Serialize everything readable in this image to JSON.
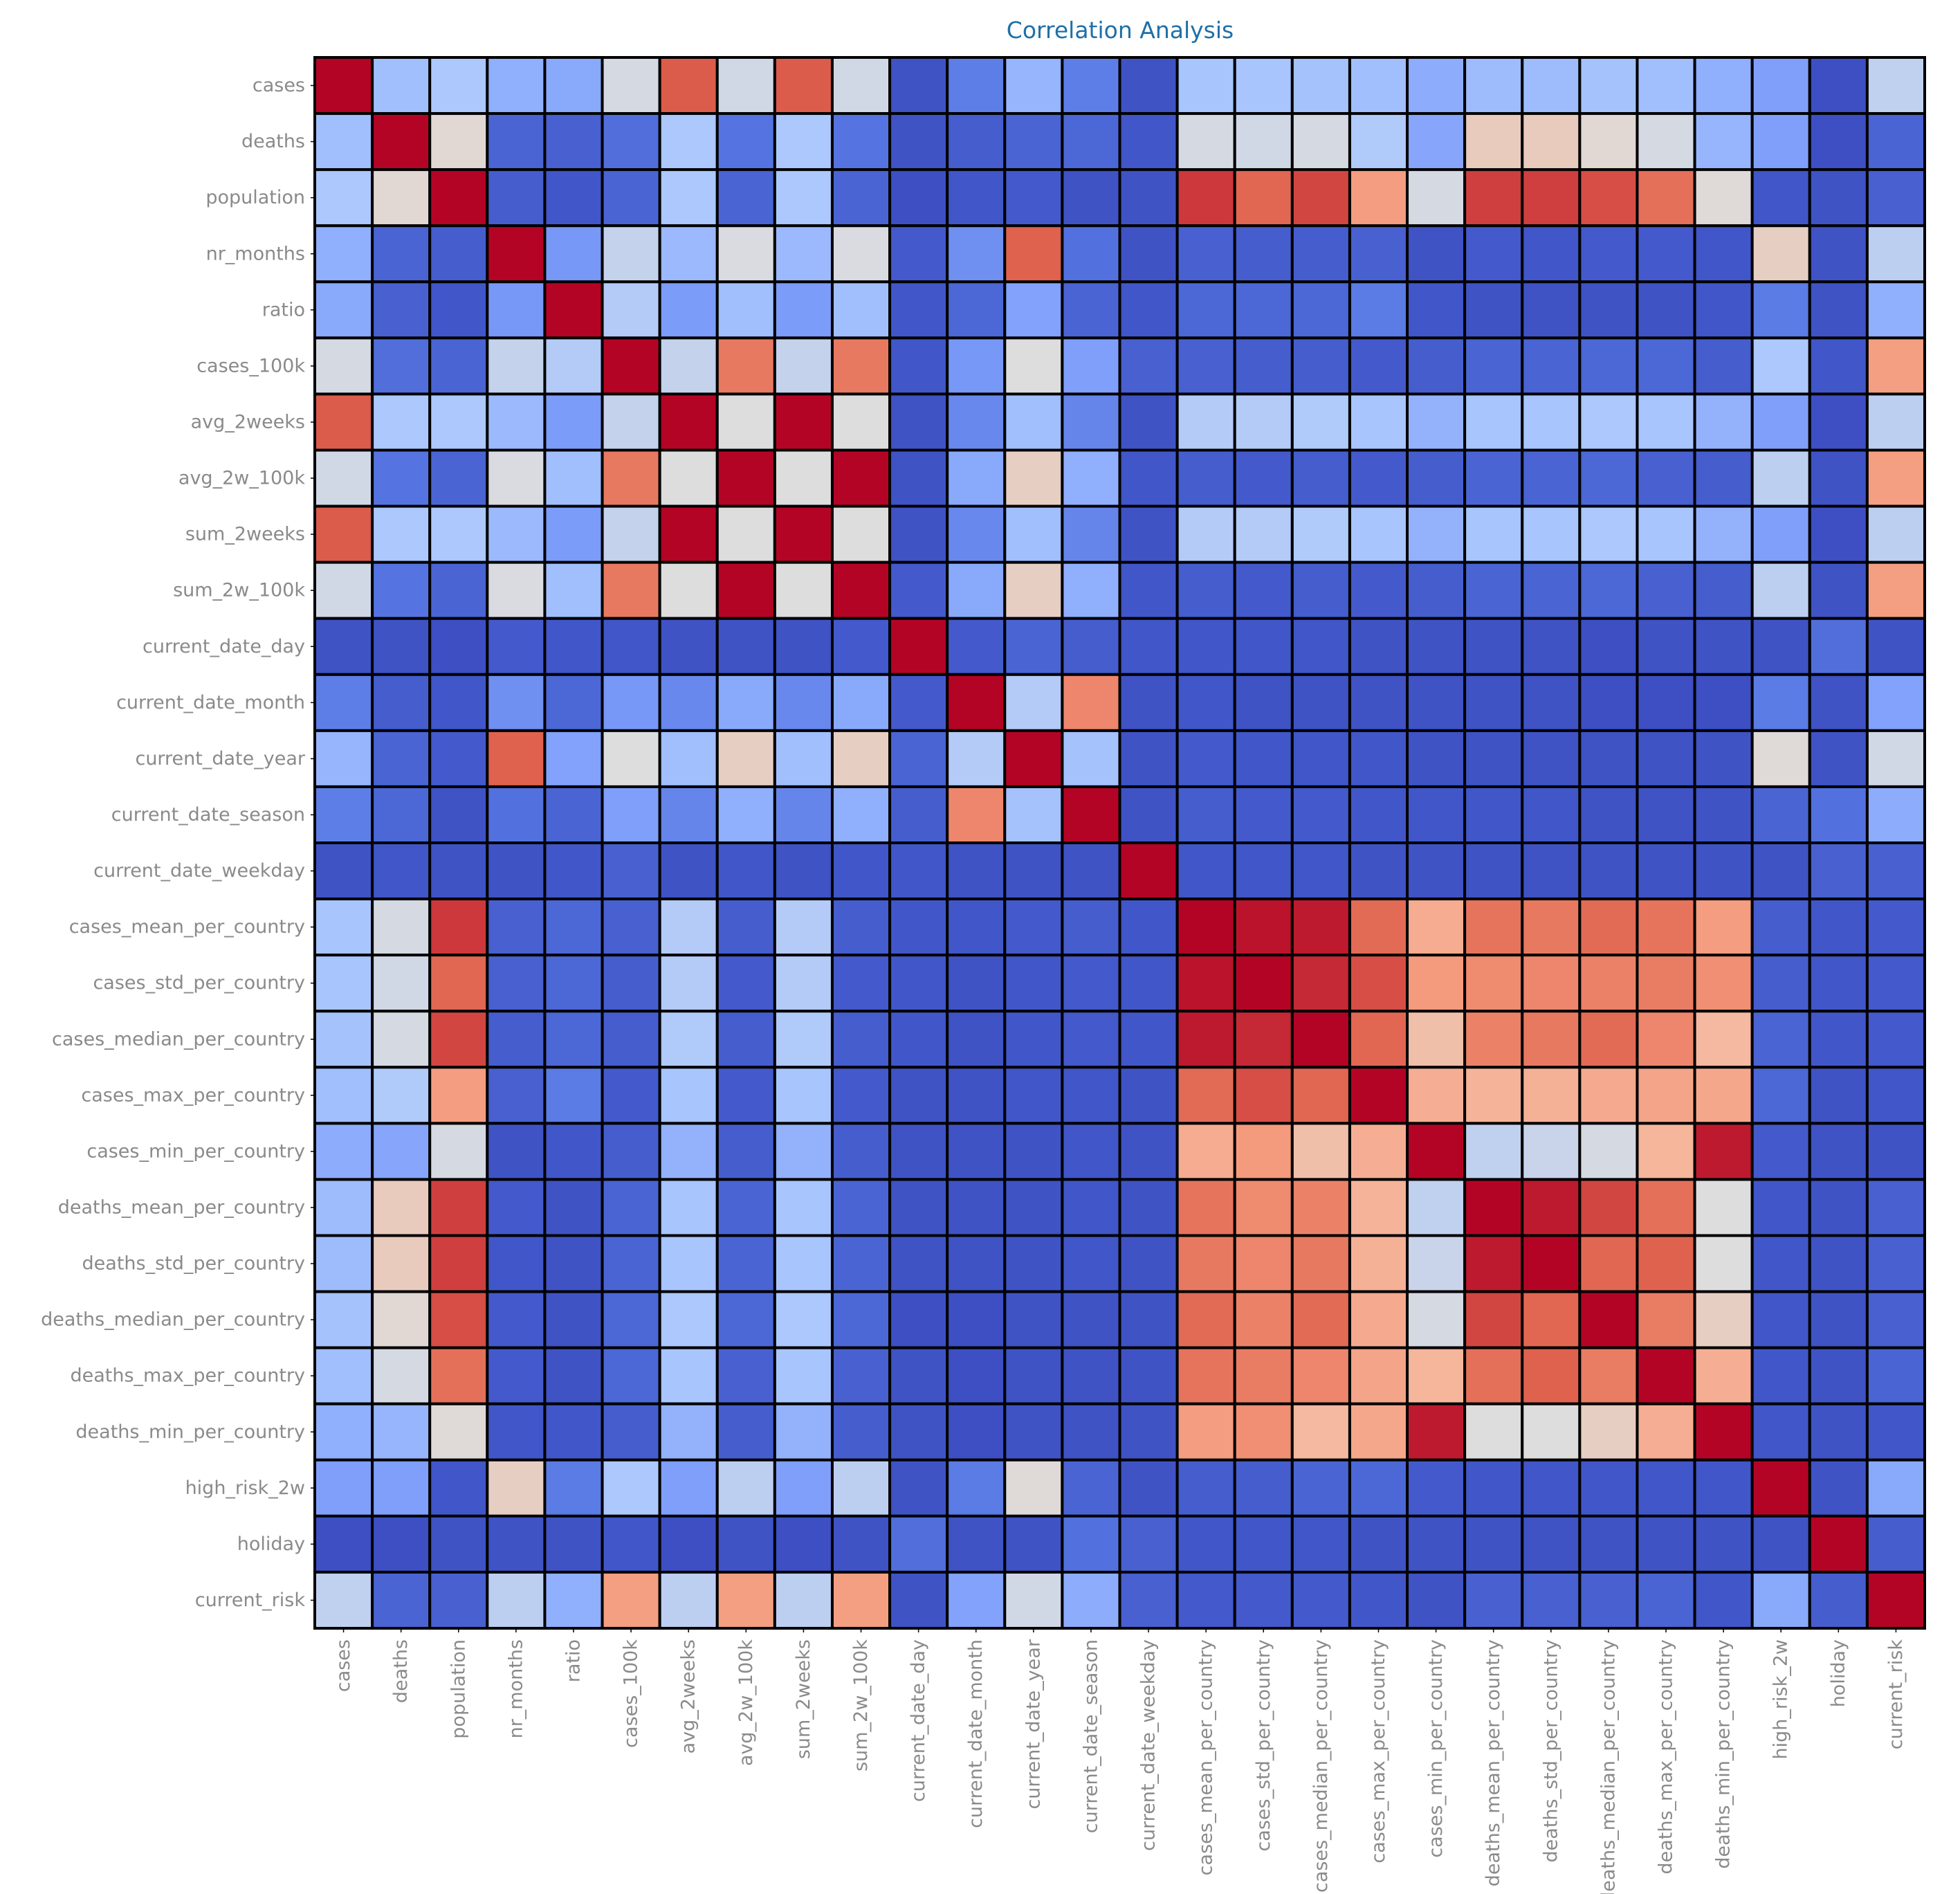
{
  "chart_data": {
    "type": "heatmap",
    "title": "Correlation Analysis",
    "colormap": "coolwarm",
    "color_range": [
      0,
      1
    ],
    "grid": false,
    "legend": "none",
    "labels": [
      "cases",
      "deaths",
      "population",
      "nr_months",
      "ratio",
      "cases_100k",
      "avg_2weeks",
      "avg_2w_100k",
      "sum_2weeks",
      "sum_2w_100k",
      "current_date_day",
      "current_date_month",
      "current_date_year",
      "current_date_season",
      "current_date_weekday",
      "cases_mean_per_country",
      "cases_std_per_country",
      "cases_median_per_country",
      "cases_max_per_country",
      "cases_min_per_country",
      "deaths_mean_per_country",
      "deaths_std_per_country",
      "deaths_median_per_country",
      "deaths_max_per_country",
      "deaths_min_per_country",
      "high_risk_2w",
      "holiday",
      "current_risk"
    ],
    "matrix": [
      [
        1.0,
        0.35,
        0.38,
        0.3,
        0.28,
        0.48,
        0.88,
        0.47,
        0.88,
        0.47,
        0.02,
        0.15,
        0.32,
        0.15,
        0.02,
        0.37,
        0.37,
        0.36,
        0.35,
        0.29,
        0.34,
        0.34,
        0.36,
        0.35,
        0.3,
        0.25,
        0.01,
        0.43
      ],
      [
        0.35,
        1.0,
        0.52,
        0.07,
        0.06,
        0.1,
        0.38,
        0.12,
        0.38,
        0.12,
        0.02,
        0.05,
        0.07,
        0.08,
        0.03,
        0.48,
        0.47,
        0.48,
        0.39,
        0.27,
        0.56,
        0.56,
        0.52,
        0.48,
        0.32,
        0.25,
        0.01,
        0.07
      ],
      [
        0.38,
        0.52,
        1.0,
        0.05,
        0.03,
        0.07,
        0.38,
        0.07,
        0.38,
        0.07,
        0.01,
        0.03,
        0.04,
        0.02,
        0.02,
        0.93,
        0.86,
        0.91,
        0.73,
        0.48,
        0.92,
        0.92,
        0.9,
        0.84,
        0.51,
        0.03,
        0.02,
        0.06
      ],
      [
        0.3,
        0.07,
        0.05,
        1.0,
        0.23,
        0.44,
        0.33,
        0.49,
        0.33,
        0.49,
        0.04,
        0.2,
        0.87,
        0.11,
        0.02,
        0.06,
        0.05,
        0.05,
        0.06,
        0.02,
        0.04,
        0.03,
        0.04,
        0.04,
        0.03,
        0.55,
        0.02,
        0.42
      ],
      [
        0.28,
        0.06,
        0.03,
        0.23,
        1.0,
        0.4,
        0.24,
        0.35,
        0.24,
        0.35,
        0.03,
        0.08,
        0.26,
        0.07,
        0.03,
        0.08,
        0.08,
        0.08,
        0.14,
        0.03,
        0.02,
        0.02,
        0.02,
        0.02,
        0.03,
        0.14,
        0.02,
        0.3
      ],
      [
        0.48,
        0.1,
        0.07,
        0.44,
        0.4,
        1.0,
        0.44,
        0.82,
        0.44,
        0.82,
        0.03,
        0.23,
        0.5,
        0.25,
        0.06,
        0.06,
        0.05,
        0.05,
        0.04,
        0.05,
        0.07,
        0.07,
        0.08,
        0.08,
        0.05,
        0.38,
        0.03,
        0.72
      ],
      [
        0.88,
        0.38,
        0.38,
        0.33,
        0.24,
        0.44,
        1.0,
        0.5,
        1.0,
        0.5,
        0.02,
        0.18,
        0.35,
        0.17,
        0.02,
        0.4,
        0.4,
        0.39,
        0.37,
        0.31,
        0.37,
        0.37,
        0.38,
        0.37,
        0.31,
        0.25,
        0.01,
        0.42
      ],
      [
        0.47,
        0.12,
        0.07,
        0.49,
        0.35,
        0.82,
        0.5,
        1.0,
        0.5,
        1.0,
        0.02,
        0.28,
        0.55,
        0.3,
        0.03,
        0.05,
        0.04,
        0.05,
        0.04,
        0.05,
        0.07,
        0.07,
        0.08,
        0.06,
        0.05,
        0.42,
        0.02,
        0.72
      ],
      [
        0.88,
        0.38,
        0.38,
        0.33,
        0.24,
        0.44,
        1.0,
        0.5,
        1.0,
        0.5,
        0.02,
        0.18,
        0.35,
        0.17,
        0.02,
        0.4,
        0.4,
        0.39,
        0.37,
        0.31,
        0.37,
        0.37,
        0.38,
        0.37,
        0.31,
        0.25,
        0.01,
        0.42
      ],
      [
        0.47,
        0.12,
        0.07,
        0.49,
        0.35,
        0.82,
        0.5,
        1.0,
        0.5,
        1.0,
        0.04,
        0.28,
        0.55,
        0.3,
        0.03,
        0.05,
        0.04,
        0.05,
        0.04,
        0.05,
        0.07,
        0.07,
        0.08,
        0.06,
        0.05,
        0.42,
        0.02,
        0.72
      ],
      [
        0.02,
        0.02,
        0.01,
        0.04,
        0.03,
        0.03,
        0.02,
        0.02,
        0.02,
        0.04,
        1.0,
        0.04,
        0.07,
        0.05,
        0.03,
        0.03,
        0.03,
        0.03,
        0.02,
        0.02,
        0.02,
        0.02,
        0.01,
        0.02,
        0.02,
        0.02,
        0.1,
        0.02
      ],
      [
        0.15,
        0.05,
        0.03,
        0.2,
        0.08,
        0.23,
        0.18,
        0.28,
        0.18,
        0.28,
        0.04,
        1.0,
        0.4,
        0.79,
        0.02,
        0.03,
        0.02,
        0.02,
        0.02,
        0.02,
        0.02,
        0.02,
        0.01,
        0.01,
        0.01,
        0.14,
        0.02,
        0.26
      ],
      [
        0.32,
        0.07,
        0.04,
        0.87,
        0.26,
        0.5,
        0.35,
        0.55,
        0.35,
        0.55,
        0.07,
        0.4,
        1.0,
        0.36,
        0.02,
        0.04,
        0.03,
        0.03,
        0.03,
        0.02,
        0.02,
        0.02,
        0.02,
        0.02,
        0.02,
        0.51,
        0.02,
        0.47
      ],
      [
        0.15,
        0.08,
        0.02,
        0.11,
        0.07,
        0.25,
        0.17,
        0.3,
        0.17,
        0.3,
        0.05,
        0.79,
        0.36,
        1.0,
        0.02,
        0.05,
        0.04,
        0.04,
        0.03,
        0.03,
        0.03,
        0.03,
        0.02,
        0.02,
        0.02,
        0.07,
        0.11,
        0.29
      ],
      [
        0.02,
        0.03,
        0.02,
        0.02,
        0.03,
        0.06,
        0.02,
        0.03,
        0.02,
        0.03,
        0.03,
        0.02,
        0.02,
        0.02,
        1.0,
        0.03,
        0.03,
        0.03,
        0.02,
        0.02,
        0.02,
        0.02,
        0.02,
        0.02,
        0.02,
        0.02,
        0.06,
        0.06
      ],
      [
        0.37,
        0.48,
        0.93,
        0.06,
        0.08,
        0.06,
        0.4,
        0.05,
        0.4,
        0.05,
        0.03,
        0.03,
        0.04,
        0.05,
        0.03,
        1.0,
        0.98,
        0.97,
        0.85,
        0.67,
        0.83,
        0.82,
        0.85,
        0.83,
        0.73,
        0.05,
        0.03,
        0.04
      ],
      [
        0.37,
        0.47,
        0.86,
        0.06,
        0.08,
        0.05,
        0.4,
        0.04,
        0.4,
        0.04,
        0.03,
        0.02,
        0.03,
        0.04,
        0.03,
        0.98,
        1.0,
        0.95,
        0.9,
        0.74,
        0.78,
        0.79,
        0.8,
        0.81,
        0.77,
        0.05,
        0.03,
        0.04
      ],
      [
        0.36,
        0.48,
        0.91,
        0.05,
        0.08,
        0.05,
        0.39,
        0.05,
        0.39,
        0.05,
        0.03,
        0.02,
        0.03,
        0.04,
        0.03,
        0.97,
        0.95,
        1.0,
        0.86,
        0.6,
        0.8,
        0.82,
        0.85,
        0.79,
        0.62,
        0.07,
        0.03,
        0.04
      ],
      [
        0.35,
        0.39,
        0.73,
        0.06,
        0.14,
        0.04,
        0.37,
        0.04,
        0.37,
        0.04,
        0.02,
        0.02,
        0.03,
        0.03,
        0.02,
        0.85,
        0.9,
        0.86,
        1.0,
        0.66,
        0.64,
        0.65,
        0.68,
        0.7,
        0.69,
        0.08,
        0.02,
        0.03
      ],
      [
        0.29,
        0.27,
        0.48,
        0.02,
        0.03,
        0.05,
        0.31,
        0.05,
        0.31,
        0.05,
        0.02,
        0.02,
        0.02,
        0.03,
        0.02,
        0.67,
        0.74,
        0.6,
        0.66,
        1.0,
        0.43,
        0.45,
        0.48,
        0.63,
        0.97,
        0.04,
        0.02,
        0.02
      ],
      [
        0.34,
        0.56,
        0.92,
        0.04,
        0.02,
        0.07,
        0.37,
        0.07,
        0.37,
        0.07,
        0.02,
        0.02,
        0.02,
        0.03,
        0.02,
        0.83,
        0.78,
        0.8,
        0.64,
        0.43,
        1.0,
        0.97,
        0.91,
        0.84,
        0.5,
        0.03,
        0.02,
        0.06
      ],
      [
        0.34,
        0.56,
        0.92,
        0.03,
        0.02,
        0.07,
        0.37,
        0.07,
        0.37,
        0.07,
        0.02,
        0.02,
        0.02,
        0.03,
        0.02,
        0.82,
        0.79,
        0.82,
        0.65,
        0.45,
        0.97,
        1.0,
        0.86,
        0.87,
        0.5,
        0.03,
        0.02,
        0.06
      ],
      [
        0.36,
        0.52,
        0.9,
        0.04,
        0.02,
        0.08,
        0.38,
        0.08,
        0.38,
        0.08,
        0.01,
        0.01,
        0.02,
        0.02,
        0.02,
        0.85,
        0.8,
        0.85,
        0.68,
        0.48,
        0.91,
        0.86,
        1.0,
        0.81,
        0.55,
        0.03,
        0.02,
        0.06
      ],
      [
        0.35,
        0.48,
        0.84,
        0.04,
        0.02,
        0.08,
        0.37,
        0.06,
        0.37,
        0.06,
        0.02,
        0.01,
        0.02,
        0.02,
        0.02,
        0.83,
        0.81,
        0.79,
        0.7,
        0.63,
        0.84,
        0.87,
        0.81,
        1.0,
        0.66,
        0.03,
        0.02,
        0.07
      ],
      [
        0.3,
        0.32,
        0.51,
        0.03,
        0.03,
        0.05,
        0.31,
        0.05,
        0.31,
        0.05,
        0.02,
        0.01,
        0.02,
        0.02,
        0.02,
        0.73,
        0.77,
        0.62,
        0.69,
        0.97,
        0.5,
        0.5,
        0.55,
        0.66,
        1.0,
        0.03,
        0.02,
        0.03
      ],
      [
        0.25,
        0.25,
        0.03,
        0.55,
        0.14,
        0.38,
        0.25,
        0.42,
        0.25,
        0.42,
        0.02,
        0.14,
        0.51,
        0.07,
        0.02,
        0.05,
        0.05,
        0.07,
        0.08,
        0.04,
        0.03,
        0.03,
        0.03,
        0.03,
        0.03,
        1.0,
        0.02,
        0.28
      ],
      [
        0.01,
        0.01,
        0.02,
        0.02,
        0.02,
        0.03,
        0.01,
        0.02,
        0.01,
        0.02,
        0.1,
        0.02,
        0.02,
        0.11,
        0.06,
        0.03,
        0.03,
        0.03,
        0.02,
        0.02,
        0.02,
        0.02,
        0.02,
        0.02,
        0.02,
        0.02,
        1.0,
        0.05
      ],
      [
        0.43,
        0.07,
        0.06,
        0.42,
        0.3,
        0.72,
        0.42,
        0.72,
        0.42,
        0.72,
        0.02,
        0.26,
        0.47,
        0.29,
        0.06,
        0.04,
        0.04,
        0.04,
        0.03,
        0.02,
        0.06,
        0.06,
        0.06,
        0.07,
        0.03,
        0.28,
        0.05,
        1.0
      ]
    ]
  }
}
